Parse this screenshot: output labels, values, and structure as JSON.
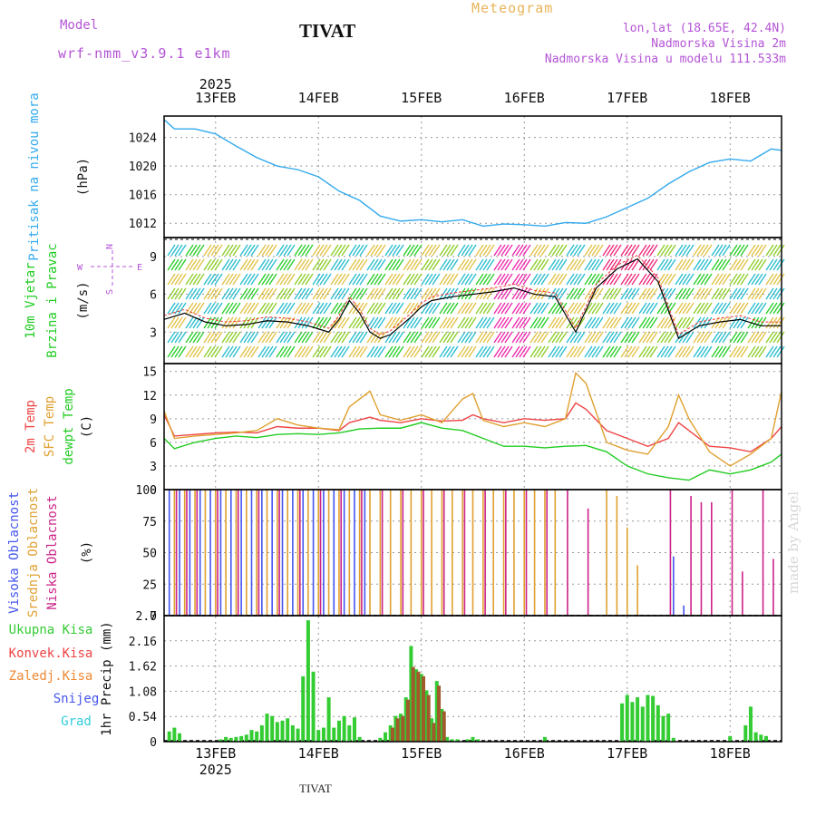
{
  "header": {
    "model_label": "Model",
    "model_version": "wrf-nmm_v3.9.1 e1km",
    "title": "TIVAT",
    "meteogram_label": "Meteogram",
    "location_line1": "lon,lat (18.65E, 42.4N)",
    "location_line2": "Nadmorska Visina 2m",
    "location_line3": "Nadmorska Visina u modelu 111.533m",
    "watermark": "made by Angel",
    "bottom_location": "TIVAT"
  },
  "time_axis": {
    "year": "2025",
    "day_labels": [
      "13FEB",
      "14FEB",
      "15FEB",
      "16FEB",
      "17FEB",
      "18FEB"
    ],
    "day_positions": [
      13,
      14,
      15,
      16,
      17,
      18
    ],
    "xlim": [
      12.5,
      18.5
    ]
  },
  "colors": {
    "pressure": "#33aaee",
    "wind_black": "#000000",
    "wind_red": "#ee3333",
    "temp_2m": "#ee4444",
    "temp_sfc": "#e0a030",
    "temp_dew": "#22cc22",
    "cloud_high": "#4455ee",
    "cloud_mid": "#e0a030",
    "cloud_low": "#cc2288",
    "precip_total": "#33cc33",
    "precip_conv": "#ee4444",
    "precip_frozen": "#ee8833",
    "precip_snow": "#4455ee",
    "precip_hail": "#33ccdd"
  },
  "chart_data": [
    {
      "type": "line",
      "panel": "pressure",
      "ylabel_main": "Pritisak na nivou mora",
      "ylabel_unit": "(hPa)",
      "ylim": [
        1010,
        1027
      ],
      "yticks": [
        1012,
        1016,
        1020,
        1024
      ],
      "grid": true,
      "series": [
        {
          "x": [
            12.5,
            12.6,
            12.8,
            13.0,
            13.2,
            13.4,
            13.6,
            13.8,
            14.0,
            14.2,
            14.4,
            14.6,
            14.8,
            15.0,
            15.2,
            15.4,
            15.6,
            15.8,
            16.0,
            16.2,
            16.4,
            16.6,
            16.8,
            17.0,
            17.2,
            17.4,
            17.6,
            17.8,
            18.0,
            18.2,
            18.4,
            18.5
          ],
          "y": [
            1026.5,
            1025.2,
            1025.2,
            1024.5,
            1022.8,
            1021.2,
            1020.0,
            1019.5,
            1018.5,
            1016.5,
            1015.2,
            1013.0,
            1012.3,
            1012.5,
            1012.2,
            1012.5,
            1011.6,
            1011.9,
            1011.8,
            1011.6,
            1012.1,
            1012.0,
            1012.9,
            1014.2,
            1015.5,
            1017.5,
            1019.2,
            1020.5,
            1021.0,
            1020.7,
            1022.4,
            1022.2
          ]
        }
      ]
    },
    {
      "type": "line",
      "panel": "wind",
      "ylabel_main": "10m Vjetar",
      "ylabel_sub": "Brzina i Pravac",
      "ylabel_unit": "(m/s)",
      "compass_labels": [
        "N",
        "W",
        "E",
        "S"
      ],
      "ylim": [
        0.5,
        10.5
      ],
      "yticks": [
        3,
        6,
        9
      ],
      "grid": true,
      "series": [
        {
          "x": [
            12.5,
            12.7,
            12.9,
            13.1,
            13.3,
            13.5,
            13.7,
            13.9,
            14.1,
            14.2,
            14.3,
            14.4,
            14.5,
            14.6,
            14.7,
            14.9,
            15.0,
            15.1,
            15.3,
            15.5,
            15.7,
            15.9,
            16.1,
            16.3,
            16.5,
            16.7,
            16.9,
            17.1,
            17.3,
            17.5,
            17.7,
            17.9,
            18.1,
            18.3,
            18.5
          ],
          "y": [
            4.0,
            4.5,
            3.8,
            3.5,
            3.6,
            3.9,
            3.8,
            3.5,
            3.0,
            4.0,
            5.5,
            4.5,
            3.0,
            2.5,
            2.8,
            4.2,
            5.0,
            5.5,
            5.8,
            6.0,
            6.2,
            6.5,
            6.0,
            5.8,
            3.0,
            6.5,
            8.0,
            8.8,
            7.0,
            2.5,
            3.5,
            3.8,
            4.0,
            3.5,
            3.5
          ]
        }
      ]
    },
    {
      "type": "line",
      "panel": "temperature",
      "ylabel_labels": [
        "2m Temp",
        "SFC Temp",
        "dewpt Temp"
      ],
      "ylabel_unit": "(C)",
      "ylim": [
        0,
        16
      ],
      "yticks": [
        0,
        3,
        6,
        9,
        12,
        15
      ],
      "grid": true,
      "series": [
        {
          "name": "2m Temp",
          "x": [
            12.5,
            12.6,
            12.8,
            13.0,
            13.2,
            13.4,
            13.6,
            13.8,
            14.0,
            14.2,
            14.3,
            14.5,
            14.6,
            14.8,
            15.0,
            15.2,
            15.4,
            15.5,
            15.6,
            15.8,
            16.0,
            16.2,
            16.4,
            16.5,
            16.6,
            16.8,
            17.0,
            17.2,
            17.4,
            17.5,
            17.6,
            17.8,
            18.0,
            18.2,
            18.4,
            18.5
          ],
          "y": [
            9.5,
            6.8,
            7.0,
            7.2,
            7.3,
            7.2,
            8.0,
            7.8,
            7.8,
            7.5,
            8.5,
            9.2,
            8.8,
            8.5,
            9.0,
            8.7,
            8.8,
            9.5,
            9.0,
            8.5,
            9.0,
            8.8,
            9.0,
            11.0,
            10.2,
            7.5,
            6.5,
            5.5,
            6.5,
            8.5,
            7.5,
            5.5,
            5.3,
            4.8,
            6.5,
            8.0
          ]
        },
        {
          "name": "SFC Temp",
          "x": [
            12.5,
            12.6,
            12.8,
            13.0,
            13.2,
            13.4,
            13.6,
            13.8,
            14.0,
            14.2,
            14.3,
            14.5,
            14.6,
            14.8,
            15.0,
            15.2,
            15.4,
            15.5,
            15.6,
            15.8,
            16.0,
            16.2,
            16.4,
            16.5,
            16.6,
            16.8,
            17.0,
            17.2,
            17.4,
            17.5,
            17.6,
            17.8,
            18.0,
            18.2,
            18.4,
            18.5
          ],
          "y": [
            10.0,
            6.5,
            6.8,
            7.0,
            7.2,
            7.5,
            9.0,
            8.2,
            7.8,
            7.6,
            10.5,
            12.5,
            9.5,
            8.8,
            9.5,
            8.5,
            11.5,
            12.2,
            8.8,
            8.0,
            8.5,
            8.0,
            9.0,
            14.8,
            13.5,
            6.0,
            5.0,
            4.5,
            8.0,
            12.0,
            9.0,
            4.8,
            3.0,
            4.5,
            6.5,
            12.5
          ]
        },
        {
          "name": "dewpt Temp",
          "x": [
            12.5,
            12.6,
            12.8,
            13.0,
            13.2,
            13.4,
            13.6,
            13.8,
            14.0,
            14.2,
            14.4,
            14.6,
            14.8,
            15.0,
            15.2,
            15.4,
            15.6,
            15.8,
            16.0,
            16.2,
            16.4,
            16.6,
            16.8,
            17.0,
            17.2,
            17.4,
            17.6,
            17.8,
            18.0,
            18.2,
            18.4,
            18.5
          ],
          "y": [
            6.5,
            5.2,
            6.0,
            6.5,
            6.8,
            6.6,
            7.0,
            7.1,
            7.0,
            7.2,
            7.7,
            7.8,
            7.8,
            8.5,
            7.8,
            7.5,
            6.5,
            5.5,
            5.5,
            5.3,
            5.5,
            5.6,
            4.8,
            3.0,
            2.0,
            1.5,
            1.2,
            2.5,
            2.0,
            2.5,
            3.5,
            4.5
          ]
        }
      ]
    },
    {
      "type": "bar",
      "panel": "clouds",
      "ylabel_labels": [
        "Visoka Oblacnost",
        "Srednja Oblacnost",
        "Niska Oblacnost"
      ],
      "ylabel_unit": "(%)",
      "ylim": [
        0,
        100
      ],
      "yticks": [
        0,
        25,
        50,
        75,
        100
      ],
      "grid": true,
      "series": [
        {
          "name": "Visoka Oblacnost",
          "x": [
            12.55,
            12.65,
            12.75,
            12.85,
            12.95,
            13.05,
            13.15,
            13.25,
            13.35,
            13.45,
            13.55,
            13.65,
            13.75,
            13.85,
            13.95,
            14.05,
            14.15,
            14.25,
            14.35,
            14.45,
            17.45,
            17.55
          ],
          "values": [
            100,
            100,
            100,
            100,
            100,
            100,
            100,
            100,
            100,
            100,
            100,
            100,
            100,
            100,
            100,
            100,
            100,
            100,
            100,
            100,
            47,
            8
          ]
        },
        {
          "name": "Srednja Oblacnost",
          "x": [
            12.6,
            12.7,
            12.8,
            12.9,
            13.0,
            13.1,
            13.2,
            13.3,
            13.4,
            13.5,
            13.6,
            13.7,
            13.8,
            13.9,
            14.0,
            14.1,
            14.2,
            14.3,
            14.4,
            14.5,
            14.6,
            14.7,
            14.8,
            14.9,
            15.0,
            15.1,
            15.2,
            15.3,
            15.4,
            15.5,
            15.6,
            15.7,
            15.8,
            15.9,
            16.0,
            16.1,
            16.2,
            16.3,
            16.8,
            16.9,
            17.0,
            17.1
          ],
          "values": [
            100,
            100,
            100,
            100,
            100,
            100,
            100,
            100,
            100,
            100,
            100,
            100,
            100,
            100,
            100,
            100,
            100,
            100,
            100,
            100,
            100,
            100,
            100,
            100,
            100,
            100,
            100,
            100,
            100,
            100,
            100,
            100,
            100,
            100,
            100,
            100,
            100,
            100,
            100,
            95,
            70,
            40
          ]
        },
        {
          "name": "Niska Oblacnost",
          "x": [
            12.62,
            12.72,
            12.82,
            13.02,
            13.22,
            13.42,
            13.62,
            13.82,
            14.02,
            14.22,
            14.42,
            14.62,
            14.82,
            15.02,
            15.22,
            15.42,
            15.62,
            15.82,
            16.02,
            16.22,
            16.42,
            16.62,
            17.42,
            17.62,
            17.72,
            17.82,
            18.02,
            18.12,
            18.32,
            18.42
          ],
          "values": [
            100,
            100,
            100,
            100,
            100,
            100,
            100,
            100,
            100,
            100,
            100,
            100,
            100,
            100,
            100,
            100,
            100,
            100,
            100,
            100,
            100,
            85,
            100,
            95,
            90,
            90,
            100,
            35,
            100,
            45
          ]
        }
      ]
    },
    {
      "type": "bar",
      "panel": "precipitation",
      "ylabel_labels": [
        "Ukupna Kisa",
        "Konvek.Kisa",
        "Zaledj.Kisa",
        "Snijeg",
        "Grad"
      ],
      "ylabel_unit": "1hr Precip (mm)",
      "ylim": [
        0,
        2.7
      ],
      "yticks": [
        0,
        0.54,
        1.08,
        1.62,
        2.16,
        2.7
      ],
      "grid": true,
      "series": [
        {
          "name": "Ukupna Kisa",
          "x": [
            12.55,
            12.6,
            12.65,
            13.05,
            13.1,
            13.15,
            13.2,
            13.25,
            13.3,
            13.35,
            13.4,
            13.45,
            13.5,
            13.55,
            13.6,
            13.65,
            13.7,
            13.75,
            13.8,
            13.85,
            13.9,
            13.95,
            14.0,
            14.05,
            14.1,
            14.15,
            14.2,
            14.25,
            14.3,
            14.35,
            14.4,
            14.6,
            14.65,
            14.7,
            14.75,
            14.8,
            14.85,
            14.9,
            14.95,
            15.0,
            15.05,
            15.1,
            15.15,
            15.2,
            15.25,
            15.3,
            15.35,
            15.45,
            15.5,
            15.55,
            16.2,
            16.95,
            17.0,
            17.05,
            17.1,
            17.15,
            17.2,
            17.25,
            17.3,
            17.35,
            17.4,
            17.45,
            18.0,
            18.15,
            18.2,
            18.25,
            18.3,
            18.35
          ],
          "values": [
            0.22,
            0.3,
            0.18,
            0.05,
            0.1,
            0.08,
            0.1,
            0.12,
            0.15,
            0.25,
            0.22,
            0.35,
            0.6,
            0.55,
            0.42,
            0.45,
            0.5,
            0.35,
            0.28,
            1.4,
            2.6,
            1.5,
            0.25,
            0.3,
            0.95,
            0.3,
            0.45,
            0.55,
            0.35,
            0.52,
            0.1,
            0.08,
            0.2,
            0.35,
            0.55,
            0.6,
            0.95,
            2.05,
            1.55,
            1.45,
            1.1,
            0.5,
            1.3,
            0.7,
            0.1,
            0.05,
            0.05,
            0.05,
            0.1,
            0.05,
            0.1,
            0.82,
            1.0,
            0.85,
            0.95,
            0.75,
            1.0,
            0.98,
            0.78,
            0.55,
            0.6,
            0.08,
            0.12,
            0.35,
            0.75,
            0.2,
            0.15,
            0.12
          ],
          "values_note": ""
        },
        {
          "name": "Konvek.Kisa",
          "x": [
            14.72,
            14.77,
            14.82,
            14.87,
            14.92,
            14.97,
            15.02,
            15.07,
            15.12,
            15.17,
            15.22
          ],
          "values": [
            0.3,
            0.5,
            0.55,
            0.9,
            1.6,
            1.5,
            1.4,
            1.0,
            0.4,
            1.2,
            0.65
          ]
        }
      ]
    }
  ]
}
